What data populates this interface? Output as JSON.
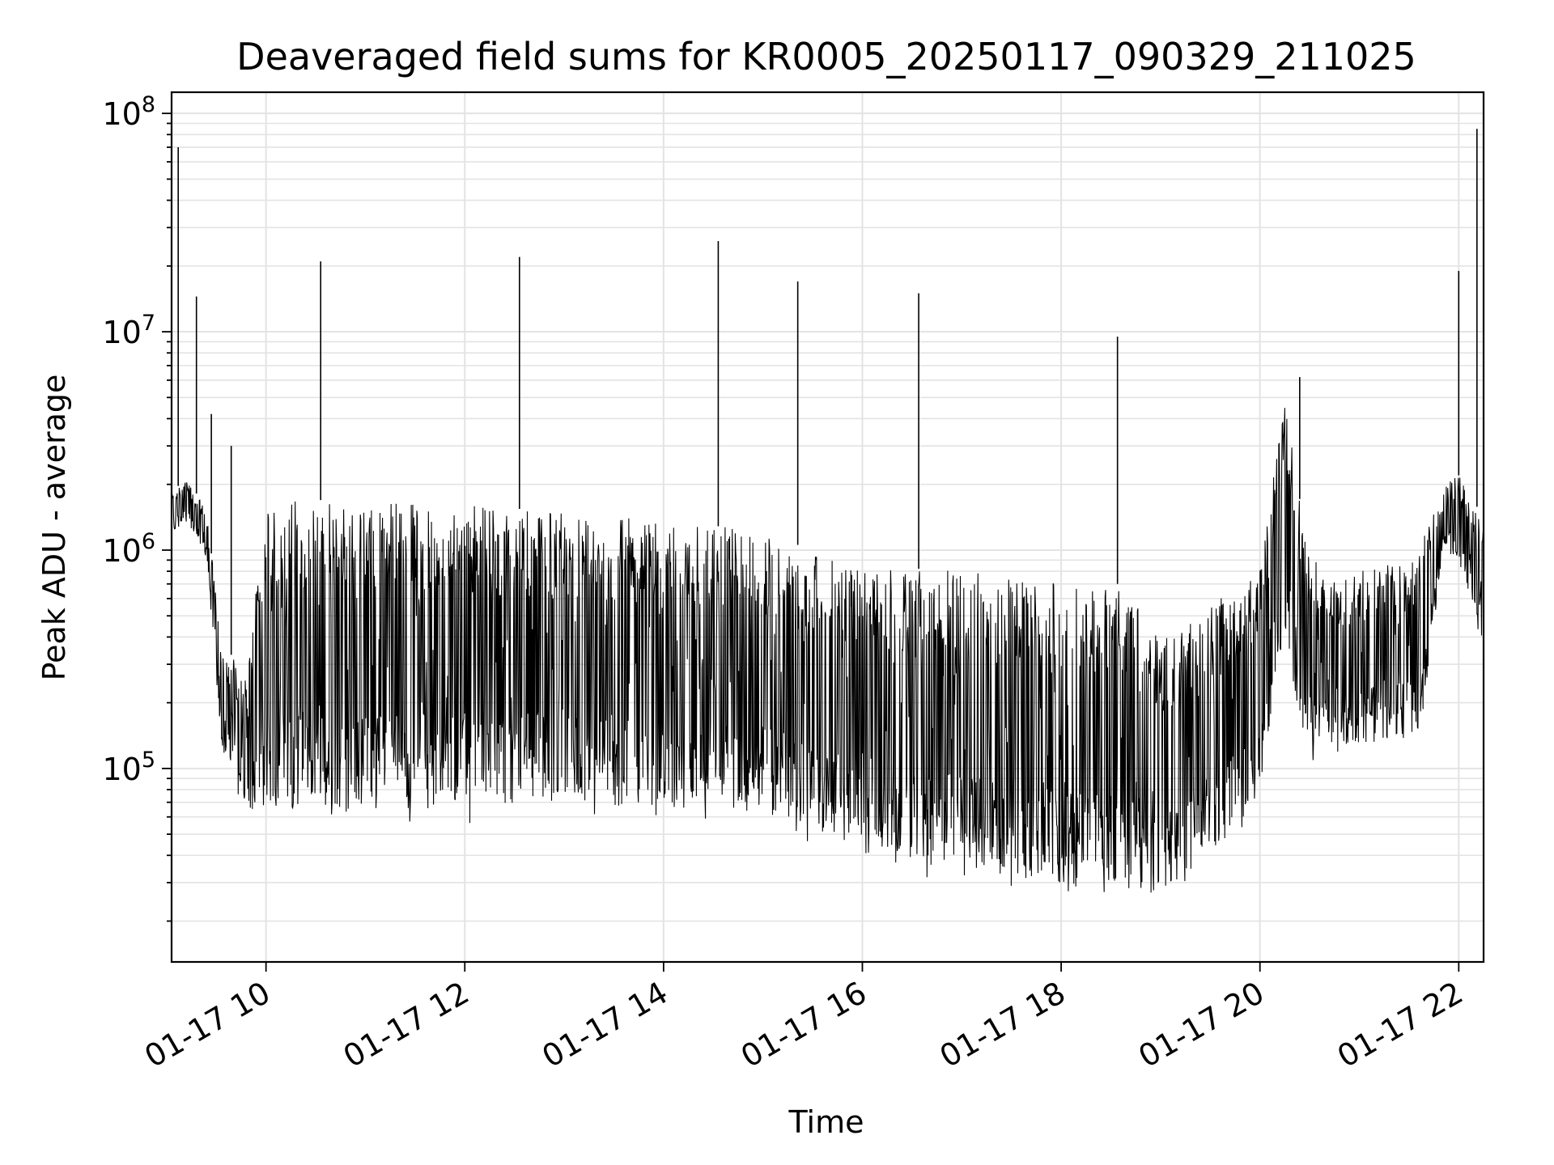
{
  "chart_data": {
    "type": "line",
    "title": "Deaveraged field sums for KR0005_20250117_090329_211025",
    "xlabel": "Time",
    "ylabel": "Peak ADU - average",
    "x_scale": "time",
    "y_scale": "log",
    "xlim": [
      "2025-01-17 09:03",
      "2025-01-17 22:15"
    ],
    "ylim": [
      13000,
      125000000
    ],
    "x_ticks": [
      "01-17 10",
      "01-17 12",
      "01-17 14",
      "01-17 16",
      "01-17 18",
      "01-17 20",
      "01-17 22"
    ],
    "y_ticks": [
      {
        "base": "10",
        "exp": "5",
        "value": 100000
      },
      {
        "base": "10",
        "exp": "6",
        "value": 1000000
      },
      {
        "base": "10",
        "exp": "7",
        "value": 10000000
      },
      {
        "base": "10",
        "exp": "8",
        "value": 100000000
      }
    ],
    "grid": true,
    "line_color": "#000000",
    "envelope_hours": [
      9.05,
      9.2,
      9.4,
      9.55,
      9.8,
      10.0,
      10.5,
      11.0,
      12.0,
      13.0,
      14.0,
      15.0,
      15.5,
      16.0,
      17.0,
      18.0,
      18.6,
      19.0,
      19.6,
      20.0,
      20.25,
      20.45,
      20.7,
      21.0,
      21.6,
      21.85,
      22.0,
      22.25
    ],
    "envelope_high": [
      1800000,
      2200000,
      1500000,
      400000,
      250000,
      1700000,
      1700000,
      1650000,
      1600000,
      1500000,
      1400000,
      1200000,
      1000000,
      850000,
      800000,
      700000,
      700000,
      400000,
      600000,
      800000,
      5000000,
      1200000,
      700000,
      800000,
      1000000,
      2000000,
      2200000,
      1400000
    ],
    "envelope_low": [
      1200000,
      1300000,
      900000,
      120000,
      60000,
      55000,
      55000,
      55000,
      55000,
      60000,
      55000,
      52000,
      45000,
      35000,
      30000,
      25000,
      25000,
      22000,
      40000,
      60000,
      400000,
      100000,
      110000,
      120000,
      120000,
      1000000,
      800000,
      350000
    ],
    "spikes": [
      {
        "time": "2025-01-17 09:07",
        "value": 70000000
      },
      {
        "time": "2025-01-17 09:18",
        "value": 14500000
      },
      {
        "time": "2025-01-17 09:27",
        "value": 4200000
      },
      {
        "time": "2025-01-17 09:39",
        "value": 3000000
      },
      {
        "time": "2025-01-17 10:33",
        "value": 21000000
      },
      {
        "time": "2025-01-17 12:33",
        "value": 22000000
      },
      {
        "time": "2025-01-17 14:33",
        "value": 26000000
      },
      {
        "time": "2025-01-17 15:21",
        "value": 17000000
      },
      {
        "time": "2025-01-17 16:34",
        "value": 15000000
      },
      {
        "time": "2025-01-17 18:34",
        "value": 9500000
      },
      {
        "time": "2025-01-17 20:24",
        "value": 6200000
      },
      {
        "time": "2025-01-17 22:00",
        "value": 19000000
      },
      {
        "time": "2025-01-17 22:11",
        "value": 85000000
      }
    ]
  }
}
